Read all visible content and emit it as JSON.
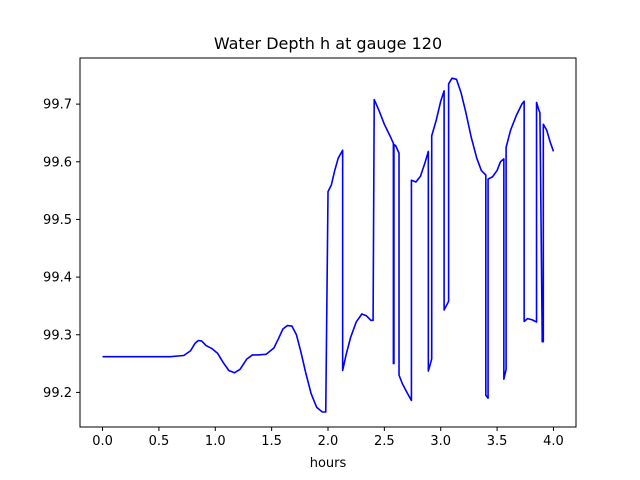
{
  "chart_data": {
    "type": "line",
    "title": "Water Depth h at gauge 120",
    "xlabel": "hours",
    "ylabel": "",
    "xlim": [
      -0.2,
      4.2
    ],
    "ylim": [
      99.14,
      99.78
    ],
    "xticks": [
      0.0,
      0.5,
      1.0,
      1.5,
      2.0,
      2.5,
      3.0,
      3.5,
      4.0
    ],
    "xtick_labels": [
      "0.0",
      "0.5",
      "1.0",
      "1.5",
      "2.0",
      "2.5",
      "3.0",
      "3.5",
      "4.0"
    ],
    "yticks": [
      99.2,
      99.3,
      99.4,
      99.5,
      99.6,
      99.7
    ],
    "ytick_labels": [
      "99.2",
      "99.3",
      "99.4",
      "99.5",
      "99.6",
      "99.7"
    ],
    "grid": false,
    "series": [
      {
        "color": "#0000ff",
        "x": [
          0.0,
          0.2,
          0.4,
          0.6,
          0.72,
          0.78,
          0.82,
          0.85,
          0.88,
          0.92,
          0.97,
          1.02,
          1.07,
          1.12,
          1.17,
          1.22,
          1.28,
          1.33,
          1.38,
          1.45,
          1.52,
          1.56,
          1.6,
          1.64,
          1.68,
          1.72,
          1.76,
          1.8,
          1.85,
          1.9,
          1.95,
          1.98,
          2.0,
          2.0,
          2.03,
          2.06,
          2.09,
          2.13,
          2.13,
          2.16,
          2.2,
          2.25,
          2.3,
          2.34,
          2.38,
          2.4,
          2.41,
          2.41,
          2.45,
          2.5,
          2.55,
          2.58,
          2.58,
          2.585,
          2.585,
          2.6,
          2.63,
          2.63,
          2.66,
          2.7,
          2.74,
          2.74,
          2.78,
          2.82,
          2.86,
          2.89,
          2.89,
          2.92,
          2.92,
          2.96,
          3.0,
          3.03,
          3.03,
          3.07,
          3.07,
          3.1,
          3.14,
          3.18,
          3.22,
          3.27,
          3.32,
          3.36,
          3.4,
          3.4,
          3.42,
          3.42,
          3.46,
          3.5,
          3.53,
          3.56,
          3.56,
          3.58,
          3.58,
          3.62,
          3.67,
          3.72,
          3.74,
          3.74,
          3.77,
          3.81,
          3.85,
          3.85,
          3.87,
          3.88,
          3.9,
          3.9,
          3.91,
          3.91,
          3.94,
          3.97,
          4.0
        ],
        "y": [
          99.262,
          99.262,
          99.262,
          99.262,
          99.264,
          99.272,
          99.285,
          99.29,
          99.289,
          99.281,
          99.276,
          99.268,
          99.252,
          99.238,
          99.234,
          99.24,
          99.258,
          99.265,
          99.265,
          99.266,
          99.277,
          99.293,
          99.31,
          99.316,
          99.315,
          99.3,
          99.27,
          99.236,
          99.198,
          99.174,
          99.166,
          99.166,
          99.545,
          99.548,
          99.56,
          99.585,
          99.606,
          99.62,
          99.238,
          99.265,
          99.295,
          99.322,
          99.336,
          99.333,
          99.325,
          99.325,
          99.708,
          99.708,
          99.69,
          99.665,
          99.645,
          99.632,
          99.25,
          99.25,
          99.63,
          99.628,
          99.615,
          99.23,
          99.215,
          99.2,
          99.186,
          99.568,
          99.565,
          99.575,
          99.598,
          99.618,
          99.237,
          99.258,
          99.645,
          99.672,
          99.705,
          99.723,
          99.343,
          99.358,
          99.735,
          99.745,
          99.743,
          99.72,
          99.688,
          99.643,
          99.606,
          99.585,
          99.577,
          99.195,
          99.19,
          99.57,
          99.574,
          99.585,
          99.6,
          99.605,
          99.223,
          99.24,
          99.625,
          99.655,
          99.68,
          99.7,
          99.705,
          99.323,
          99.328,
          99.326,
          99.322,
          99.703,
          99.69,
          99.685,
          99.3,
          99.288,
          99.288,
          99.665,
          99.655,
          99.635,
          99.618
        ]
      }
    ]
  }
}
